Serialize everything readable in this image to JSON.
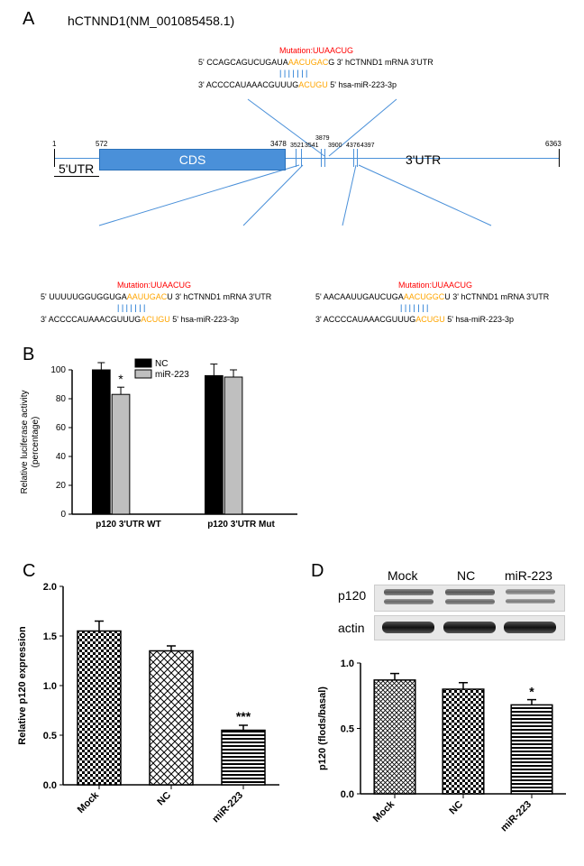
{
  "panelA": {
    "label": "A",
    "gene_title": "hCTNND1(NM_001085458.1)",
    "positions": {
      "start": "1",
      "cds_start": "572",
      "cds_end": "3478",
      "s1a": "3521",
      "s1b": "3541",
      "s2a": "3879",
      "s2b": "3900",
      "s3a": "4376",
      "s3b": "4397",
      "end": "6363"
    },
    "region_labels": {
      "utr5": "5'UTR",
      "cds": "CDS",
      "utr3": "3'UTR"
    },
    "colors": {
      "line": "#4a90d9",
      "cds_fill": "#4a90d9",
      "mutation": "#ff0000",
      "highlight": "#ffa500",
      "bars": "#0066cc"
    },
    "seq_top": {
      "mutation": "Mutation:UUAACUG",
      "line1_pre": "5'  CCAGCAGUCUGAUA",
      "line1_hl": "AACUGAC",
      "line1_post": "G 3' hCTNND1 mRNA 3'UTR",
      "bars": "| | | | | | |",
      "line2_pre": "3'  ACCCCAUAAACGUUUG",
      "line2_hl": "ACUGU",
      "line2_post": " 5' hsa-miR-223-3p"
    },
    "seq_bl": {
      "mutation": "Mutation:UUAACUG",
      "line1_pre": "5'  UUUUUGGUGGUGA",
      "line1_hl": "AAUUGAC",
      "line1_post": "U 3' hCTNND1 mRNA 3'UTR",
      "bars": "| | | | | | |",
      "line2_pre": "3'  ACCCCAUAAACGUUUG",
      "line2_hl": "ACUGU",
      "line2_post": " 5' hsa-miR-223-3p"
    },
    "seq_br": {
      "mutation": "Mutation:UUAACUG",
      "line1_pre": "5'  AACAAUUGAUCUGA",
      "line1_hl": "AACUGGC",
      "line1_post": "U 3' hCTNND1 mRNA 3'UTR",
      "bars": "| | | | | | |",
      "line2_pre": "3'  ACCCCAUAAACGUUUG",
      "line2_hl": "ACUGU",
      "line2_post": " 5' hsa-miR-223-3p"
    }
  },
  "panelB": {
    "label": "B",
    "type": "bar",
    "ylabel": "Relative luciferase activity\n(percentage)",
    "ylim": [
      0,
      100
    ],
    "ytick_step": 20,
    "categories": [
      "p120 3'UTR WT",
      "p120 3'UTR Mut"
    ],
    "series": [
      {
        "name": "NC",
        "color": "#000000",
        "values": [
          100,
          96
        ],
        "err": [
          5,
          8
        ]
      },
      {
        "name": "miR-223",
        "color": "#bfbfbf",
        "values": [
          83,
          95
        ],
        "err": [
          5,
          5
        ]
      }
    ],
    "sig": {
      "group": 0,
      "series": 1,
      "mark": "*"
    },
    "axis_color": "#000000",
    "bar_width": 0.35,
    "fontsize": 10
  },
  "panelC": {
    "label": "C",
    "type": "bar",
    "ylabel": "Relative p120 expression",
    "ylim": [
      0.0,
      2.0
    ],
    "ytick_step": 0.5,
    "categories": [
      "Mock",
      "NC",
      "miR-223"
    ],
    "values": [
      1.55,
      1.35,
      0.55
    ],
    "err": [
      0.1,
      0.05,
      0.05
    ],
    "patterns": [
      "checker",
      "diagcross",
      "hstripe"
    ],
    "sig": {
      "index": 2,
      "mark": "***"
    },
    "axis_color": "#000000",
    "bar_width": 0.6,
    "fontsize": 11
  },
  "panelD": {
    "label": "D",
    "blot": {
      "lanes": [
        "Mock",
        "NC",
        "miR-223"
      ],
      "rows": [
        "p120",
        "actin"
      ]
    },
    "chart": {
      "type": "bar",
      "ylabel": "p120 (flods/basal)",
      "ylim": [
        0.0,
        1.0
      ],
      "ytick_step": 0.5,
      "categories": [
        "Mock",
        "NC",
        "miR-223"
      ],
      "values": [
        0.87,
        0.8,
        0.68
      ],
      "err": [
        0.05,
        0.05,
        0.04
      ],
      "patterns": [
        "diagcross-fine",
        "checker",
        "hstripe"
      ],
      "sig": {
        "index": 2,
        "mark": "*"
      },
      "axis_color": "#000000",
      "bar_width": 0.6,
      "fontsize": 11
    }
  }
}
